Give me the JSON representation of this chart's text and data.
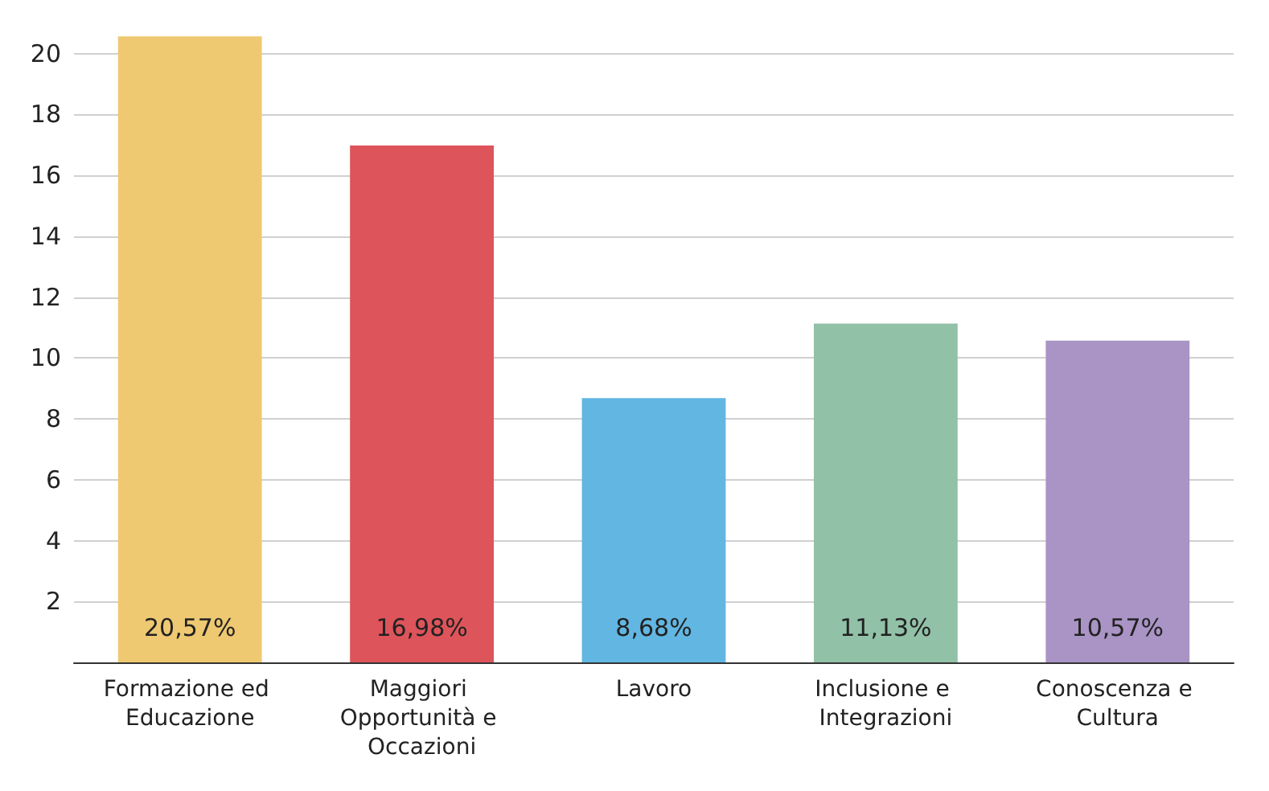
{
  "chart_data": {
    "type": "bar",
    "categories": [
      "Formazione ed Educazione",
      "Maggiori Opportunità e Occazioni",
      "Lavoro",
      "Inclusione e Integrazioni",
      "Conoscenza e Cultura"
    ],
    "values": [
      20.57,
      16.98,
      8.68,
      11.13,
      10.57
    ],
    "colors": [
      "#eec972",
      "#dd545a",
      "#62b6e2",
      "#91c1a7",
      "#a994c5"
    ],
    "value_labels": [
      "20,57%",
      "16,98%",
      "8,68%",
      "11,13%",
      "10,57%"
    ],
    "ylim": [
      0,
      20.6
    ],
    "yticks": [
      2,
      4,
      6,
      8,
      10,
      12,
      14,
      16,
      18,
      20
    ],
    "grid": "y"
  }
}
